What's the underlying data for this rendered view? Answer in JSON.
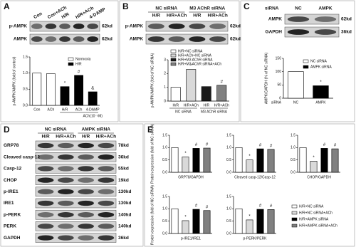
{
  "panels": [
    "A",
    "B",
    "C",
    "D",
    "E"
  ],
  "blots": [
    {
      "columns": [
        "Con",
        "Con+ACh",
        "H/R",
        "H/R+ACh",
        "4-DAMP"
      ],
      "rows": [
        {
          "protein": "p-AMPK",
          "size": "62kd"
        },
        {
          "protein": "AMPK",
          "size": "62kd"
        }
      ]
    },
    {
      "groups": [
        "NC siRNA",
        "M3 AChR siRNA"
      ],
      "columns": [
        "H/R",
        "H/R+ACh",
        "H/R",
        "H/R+ACh"
      ],
      "rows": [
        {
          "protein": "p-AMPK",
          "size": "62kd"
        },
        {
          "protein": "AMPK",
          "size": "62kd"
        }
      ]
    },
    {
      "header": "siRNA",
      "columns": [
        "NC",
        "AMPK"
      ],
      "rows": [
        {
          "protein": "AMPK",
          "size": "62kd"
        },
        {
          "protein": "GAPDH",
          "size": "36kd"
        }
      ]
    },
    {
      "groups": [
        "NC siRNA",
        "AMPK siRNA"
      ],
      "columns": [
        "H/R",
        "H/R+ACh",
        "H/R",
        "H/R+ACh"
      ],
      "rows": [
        {
          "protein": "GRP78",
          "size": "78kd"
        },
        {
          "protein": "Cleaved casp-12",
          "size": "36kd"
        },
        {
          "protein": "Casp-12",
          "size": "55kd"
        },
        {
          "protein": "CHOP",
          "size": "19kd"
        },
        {
          "protein": "p-IRE1",
          "size": "130kd"
        },
        {
          "protein": "IRE1",
          "size": "130kd"
        },
        {
          "protein": "p-PERK",
          "size": "140kd"
        },
        {
          "protein": "PERK",
          "size": "140kd"
        },
        {
          "protein": "GAPDH",
          "size": "36kd"
        }
      ]
    }
  ],
  "chart_data": [
    {
      "type": "bar",
      "ylabel": "p-AMPK/AMPK (fold of control)",
      "categories": [
        "Con",
        "ACh",
        "H/R",
        "ACh",
        "4-DAMP"
      ],
      "note": "ACh(10⁻⁵M)",
      "values": [
        1.0,
        0.98,
        0.58,
        0.93,
        0.42
      ],
      "colors": [
        "#ffffff",
        "#ffffff",
        "#000000",
        "#000000",
        "#000000"
      ],
      "annotations": [
        null,
        null,
        "*",
        "#",
        "&"
      ],
      "ylim": [
        0,
        1.5
      ],
      "yticks": [
        {
          "value": 0,
          "label": "0.0"
        },
        {
          "value": 0.5,
          "label": "0.5"
        },
        {
          "value": 1,
          "label": "1.0"
        },
        {
          "value": 1.5,
          "label": "1.5"
        }
      ],
      "legend": [
        {
          "label": "Normoxia",
          "color": "#ffffff"
        },
        {
          "label": "H/R",
          "color": "#000000"
        }
      ]
    },
    {
      "type": "bar",
      "ylabel": "p-AMPK/AMPK (fold of NC siRNA)",
      "categories": [
        "H/R",
        "H/R+ACh",
        "H/R",
        "H/R+ACh"
      ],
      "groups": [
        "NC siRNA",
        "M3 AChR siRNA"
      ],
      "values": [
        1.0,
        2.3,
        1.05,
        1.15
      ],
      "colors": [
        "#ffffff",
        "#d9d9d9",
        "#1a1a1a",
        "#808080"
      ],
      "annotations": [
        null,
        "*",
        null,
        "#"
      ],
      "ylim": [
        0,
        3
      ],
      "yticks": [
        0,
        1,
        2,
        3
      ],
      "legend": [
        {
          "label": "H/R+NC siRNA",
          "color": "#ffffff"
        },
        {
          "label": "H/R+ACh+NC siRNA",
          "color": "#d9d9d9"
        },
        {
          "label": "H/R+M3 AChR siRNA",
          "color": "#1a1a1a"
        },
        {
          "label": "H/R+M3 AChR siRNA+ACh",
          "color": "#808080"
        }
      ]
    },
    {
      "type": "bar",
      "ylabel": "AMPK/GAPDH (% of NC siRNA)",
      "xlabel": "siRNA",
      "categories": [
        "NC",
        "AMPK"
      ],
      "values": [
        100,
        47
      ],
      "colors": [
        "#ffffff",
        "#000000"
      ],
      "annotations": [
        null,
        "*"
      ],
      "ylim": [
        0,
        150
      ],
      "yticks": [
        0,
        50,
        100,
        150
      ],
      "legend": [
        {
          "label": "NC siRNA",
          "color": "#ffffff"
        },
        {
          "label": "AMPK siRNA",
          "color": "#000000"
        }
      ]
    },
    {
      "type": "bar",
      "ylabel": "Protein expression (fold of NC siRNA)",
      "xlabel": "GRP78/GAPDH",
      "values": [
        1.0,
        0.62,
        0.97,
        0.98
      ],
      "colors": [
        "#ffffff",
        "#d9d9d9",
        "#000000",
        "#808080"
      ],
      "annotations": [
        null,
        "*",
        "#",
        "#"
      ],
      "ylim": [
        0,
        1.5
      ],
      "yticks": [
        {
          "value": 0,
          "label": "0.0"
        },
        {
          "value": 0.5,
          "label": "0.5"
        },
        {
          "value": 1,
          "label": "1.0"
        },
        {
          "value": 1.5,
          "label": "1.5"
        }
      ]
    },
    {
      "type": "bar",
      "xlabel": "Cleaved casp-12/Casp-12",
      "values": [
        1.0,
        0.5,
        0.95,
        0.93
      ],
      "colors": [
        "#ffffff",
        "#d9d9d9",
        "#000000",
        "#808080"
      ],
      "annotations": [
        null,
        "*",
        "#",
        "#"
      ],
      "ylim": [
        0,
        1.5
      ],
      "yticks": [
        {
          "value": 0,
          "label": "0.0"
        },
        {
          "value": 0.5,
          "label": "0.5"
        },
        {
          "value": 1,
          "label": "1.0"
        },
        {
          "value": 1.5,
          "label": "1.5"
        }
      ]
    },
    {
      "type": "bar",
      "xlabel": "CHOP/GAPDH",
      "values": [
        1.0,
        0.45,
        0.97,
        0.95
      ],
      "colors": [
        "#ffffff",
        "#d9d9d9",
        "#000000",
        "#808080"
      ],
      "annotations": [
        null,
        "*",
        "#",
        "#"
      ],
      "ylim": [
        0,
        1.5
      ],
      "yticks": [
        {
          "value": 0,
          "label": "0.0"
        },
        {
          "value": 0.5,
          "label": "0.5"
        },
        {
          "value": 1,
          "label": "1.0"
        },
        {
          "value": 1.5,
          "label": "1.5"
        }
      ]
    },
    {
      "type": "bar",
      "ylabel": "Protein expression (fold of NC siRNA)",
      "xlabel": "p-IRE1/IRE1",
      "values": [
        1.0,
        0.52,
        0.98,
        0.93
      ],
      "colors": [
        "#ffffff",
        "#d9d9d9",
        "#000000",
        "#808080"
      ],
      "annotations": [
        null,
        "*",
        "#",
        "#"
      ],
      "ylim": [
        0,
        1.5
      ],
      "yticks": [
        {
          "value": 0,
          "label": "0.0"
        },
        {
          "value": 0.5,
          "label": "0.5"
        },
        {
          "value": 1,
          "label": "1.0"
        },
        {
          "value": 1.5,
          "label": "1.5"
        }
      ]
    },
    {
      "type": "bar",
      "xlabel": "p-PERK/PERK",
      "values": [
        1.0,
        0.55,
        0.98,
        0.97
      ],
      "colors": [
        "#ffffff",
        "#d9d9d9",
        "#000000",
        "#808080"
      ],
      "annotations": [
        null,
        "*",
        "#",
        "#"
      ],
      "ylim": [
        0,
        1.5
      ],
      "yticks": [
        {
          "value": 0,
          "label": "0.0"
        },
        {
          "value": 0.5,
          "label": "0.5"
        },
        {
          "value": 1,
          "label": "1.0"
        },
        {
          "value": 1.5,
          "label": "1.5"
        }
      ],
      "legend": [
        {
          "label": "H/R+NC siRNA",
          "color": "#ffffff"
        },
        {
          "label": "H/R+NC siRNA+ACh",
          "color": "#d9d9d9"
        },
        {
          "label": "H/R+AMPK siRNA",
          "color": "#000000"
        },
        {
          "label": "H/R+AMPK siRNA+ACh",
          "color": "#808080"
        }
      ]
    }
  ]
}
